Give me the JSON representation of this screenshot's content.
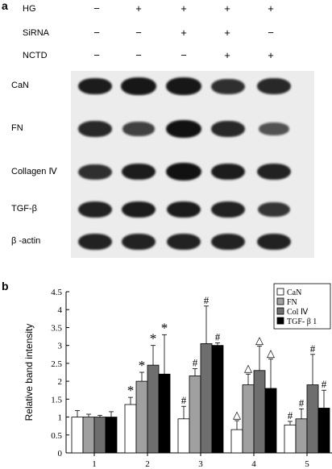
{
  "panel_a": {
    "letter": "a",
    "treatments": [
      {
        "name": "HG",
        "marks": [
          "−",
          "+",
          "+",
          "+",
          "+"
        ]
      },
      {
        "name": "SiRNA",
        "marks": [
          "−",
          "−",
          "+",
          "+",
          "−"
        ]
      },
      {
        "name": "NCTD",
        "marks": [
          "−",
          "−",
          "−",
          "+",
          "+"
        ]
      }
    ],
    "bands": [
      {
        "name": "CaN",
        "intensity": [
          0.9,
          0.95,
          0.95,
          0.75,
          0.8
        ]
      },
      {
        "name": "FN",
        "intensity": [
          0.8,
          0.6,
          1.0,
          0.8,
          0.45
        ]
      },
      {
        "name": "Collagen Ⅳ",
        "intensity": [
          0.75,
          0.9,
          1.0,
          0.9,
          0.85
        ]
      },
      {
        "name": "TGF-β",
        "intensity": [
          0.85,
          0.9,
          0.9,
          0.85,
          0.7
        ]
      },
      {
        "name": "β -actin",
        "intensity": [
          0.85,
          0.85,
          0.85,
          0.85,
          0.85
        ]
      }
    ]
  },
  "panel_b": {
    "letter": "b",
    "chart_data": {
      "type": "bar",
      "ylabel": "Relative band intensity",
      "xlabel": "",
      "ylim": [
        0,
        4.5
      ],
      "yticks": [
        "0",
        "0.5",
        "1",
        "1.5",
        "2",
        "2.5",
        "3",
        "3.5",
        "4",
        "4.5"
      ],
      "categories": [
        "1",
        "2",
        "3",
        "4",
        "5"
      ],
      "legend_position": "top-right",
      "series": [
        {
          "name": "CaN",
          "color": "#ffffff",
          "values": [
            1.0,
            1.35,
            0.95,
            0.65,
            0.78
          ],
          "errors": [
            0.18,
            0.2,
            0.35,
            0.25,
            0.1
          ],
          "marks": [
            "",
            "*",
            "#",
            "△",
            "#"
          ]
        },
        {
          "name": "FN",
          "color": "#a0a0a0",
          "values": [
            1.0,
            2.0,
            2.15,
            1.9,
            0.95
          ],
          "errors": [
            0.08,
            0.25,
            0.2,
            0.3,
            0.28
          ],
          "marks": [
            "",
            "*",
            "#",
            "△",
            "#"
          ]
        },
        {
          "name": "Col Ⅳ",
          "color": "#6e6e6e",
          "values": [
            1.0,
            2.45,
            3.05,
            2.3,
            1.9
          ],
          "errors": [
            0.05,
            0.55,
            1.05,
            0.68,
            0.85
          ],
          "marks": [
            "",
            "*",
            "#",
            "△",
            "#"
          ]
        },
        {
          "name": "TGF- β 1",
          "color": "#000000",
          "values": [
            1.0,
            2.2,
            3.0,
            1.8,
            1.25
          ],
          "errors": [
            0.15,
            1.1,
            0.07,
            0.82,
            0.5
          ],
          "marks": [
            "",
            "*",
            "#",
            "△",
            "#"
          ]
        }
      ]
    }
  }
}
